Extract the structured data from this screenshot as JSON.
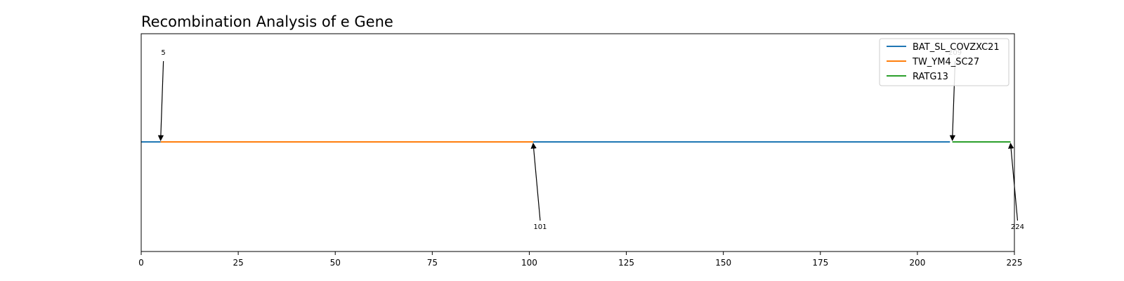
{
  "chart_data": {
    "type": "line",
    "title": "Recombination Analysis of e Gene",
    "xlabel": "",
    "ylabel": "",
    "xlim": [
      0,
      225
    ],
    "xticks": [
      0,
      25,
      50,
      75,
      100,
      125,
      150,
      175,
      200,
      225
    ],
    "grid": false,
    "legend_position": "top-right",
    "series": [
      {
        "name": "BAT_SL_COVZXC21",
        "color": "#1f77b4",
        "segments": [
          [
            0,
            5
          ],
          [
            101,
            208.4
          ]
        ]
      },
      {
        "name": "TW_YM4_SC27",
        "color": "#ff7f0e",
        "segments": [
          [
            5,
            101
          ]
        ]
      },
      {
        "name": "RATG13",
        "color": "#2ca02c",
        "segments": [
          [
            209,
            224
          ]
        ]
      }
    ],
    "annotations": [
      {
        "x": 5,
        "text": "5",
        "side": "above"
      },
      {
        "x": 101,
        "text": "101",
        "side": "below"
      },
      {
        "x": 209,
        "text": "209",
        "side": "above"
      },
      {
        "x": 224,
        "text": "224",
        "side": "below"
      }
    ]
  }
}
